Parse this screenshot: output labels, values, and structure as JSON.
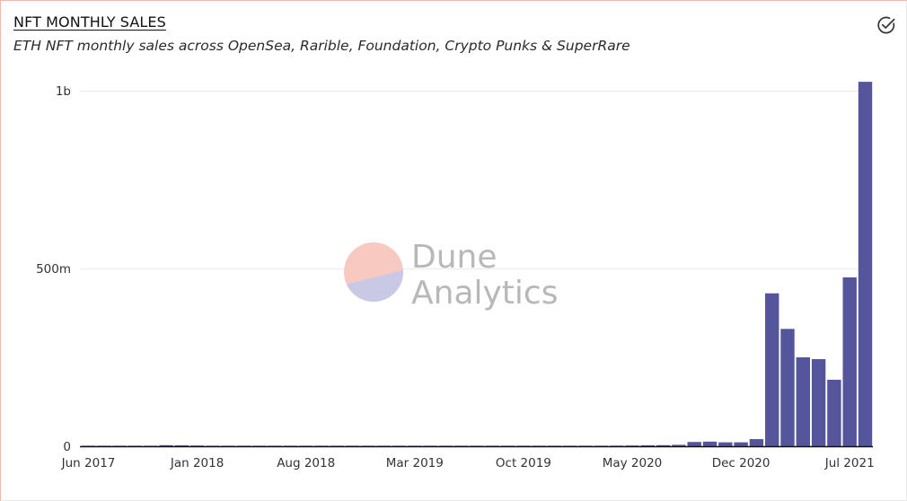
{
  "header": {
    "title": "NFT MONTHLY SALES",
    "subtitle": "ETH NFT monthly sales across OpenSea, Rarible, Foundation, Crypto Punks & SuperRare"
  },
  "icons": {
    "verified": "check-circle-icon"
  },
  "watermark": {
    "line1": "Dune",
    "line2": "Analytics"
  },
  "colors": {
    "bar": "#55559b",
    "grid": "#ebebeb",
    "axis": "#111111",
    "watermark_top": "#f7c9c0",
    "watermark_bottom": "#c9c9e6"
  },
  "chart_data": {
    "type": "bar",
    "title": "NFT MONTHLY SALES",
    "subtitle": "ETH NFT monthly sales across OpenSea, Rarible, Foundation, Crypto Punks & SuperRare",
    "x_tick_labels": [
      "Jun 2017",
      "Jan 2018",
      "Aug 2018",
      "Mar 2019",
      "Oct 2019",
      "May 2020",
      "Dec 2020",
      "Jul 2021"
    ],
    "y_tick_labels": [
      "0",
      "500m",
      "1b"
    ],
    "y_tick_values": [
      0,
      500000000,
      1000000000
    ],
    "ylim": [
      0,
      1000000000
    ],
    "grid": true,
    "legend": "none",
    "categories": [
      "Jun 2017",
      "Jul 2017",
      "Aug 2017",
      "Sep 2017",
      "Oct 2017",
      "Nov 2017",
      "Dec 2017",
      "Jan 2018",
      "Feb 2018",
      "Mar 2018",
      "Apr 2018",
      "May 2018",
      "Jun 2018",
      "Jul 2018",
      "Aug 2018",
      "Sep 2018",
      "Oct 2018",
      "Nov 2018",
      "Dec 2018",
      "Jan 2019",
      "Feb 2019",
      "Mar 2019",
      "Apr 2019",
      "May 2019",
      "Jun 2019",
      "Jul 2019",
      "Aug 2019",
      "Sep 2019",
      "Oct 2019",
      "Nov 2019",
      "Dec 2019",
      "Jan 2020",
      "Feb 2020",
      "Mar 2020",
      "Apr 2020",
      "May 2020",
      "Jun 2020",
      "Jul 2020",
      "Aug 2020",
      "Sep 2020",
      "Oct 2020",
      "Nov 2020",
      "Dec 2020",
      "Jan 2021",
      "Feb 2021",
      "Mar 2021",
      "Apr 2021",
      "May 2021",
      "Jun 2021",
      "Jul 2021",
      "Aug 2021"
    ],
    "values": [
      200000,
      300000,
      300000,
      400000,
      400000,
      3000000,
      2500000,
      2000000,
      1500000,
      1200000,
      1000000,
      900000,
      800000,
      800000,
      700000,
      700000,
      700000,
      600000,
      600000,
      600000,
      600000,
      700000,
      700000,
      800000,
      800000,
      900000,
      900000,
      1000000,
      1000000,
      1100000,
      1200000,
      1300000,
      1400000,
      1500000,
      1700000,
      2000000,
      2500000,
      3000000,
      4000000,
      12000000,
      13000000,
      11000000,
      11000000,
      20000000,
      430000000,
      330000000,
      250000000,
      245000000,
      187000000,
      475000000,
      1025000000
    ]
  }
}
